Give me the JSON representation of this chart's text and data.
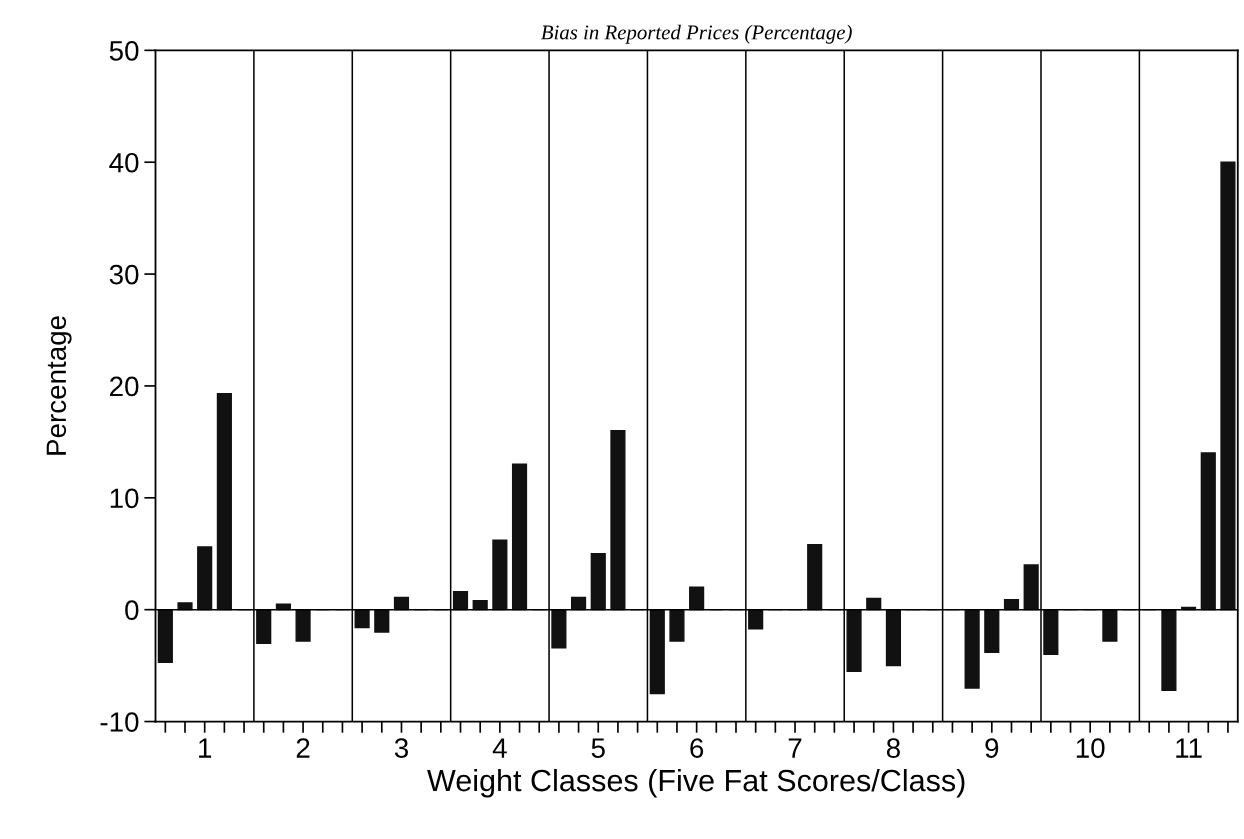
{
  "chart_data": {
    "type": "bar",
    "title": "Bias in Reported Prices (Percentage)",
    "xlabel": "Weight Classes (Five Fat Scores/Class)",
    "ylabel": "Percentage",
    "x": [
      0.6,
      0.8,
      1.0,
      1.2,
      1.4,
      1.6,
      1.8,
      2.0,
      2.2,
      2.4,
      2.6,
      2.8,
      3.0,
      3.2,
      3.4,
      3.6,
      3.8,
      4.0,
      4.2,
      4.4,
      4.6,
      4.8,
      5.0,
      5.2,
      5.4,
      5.6,
      5.8,
      6.0,
      6.2,
      6.4,
      6.6,
      6.8,
      7.0,
      7.2,
      7.4,
      7.6,
      7.8,
      8.0,
      8.2,
      8.4,
      8.6,
      8.8,
      9.0,
      9.2,
      9.4,
      9.6,
      9.8,
      10.0,
      10.2,
      10.4,
      10.6,
      10.8,
      11.0,
      11.2,
      11.4
    ],
    "values": [
      -4.7,
      0.6,
      5.6,
      19.3,
      0,
      -3.0,
      0.5,
      -2.8,
      0,
      0,
      -1.6,
      -2.0,
      1.1,
      0,
      0,
      1.6,
      0.8,
      6.2,
      13.0,
      0,
      -3.4,
      1.1,
      5.0,
      16.0,
      0,
      -7.5,
      -2.8,
      2.0,
      0,
      0,
      -1.7,
      0,
      0,
      5.8,
      0,
      -5.5,
      1.0,
      -5.0,
      0,
      0,
      0,
      -7.0,
      -3.8,
      0.9,
      4.0,
      -4.0,
      0,
      0,
      -2.8,
      0,
      0,
      -7.2,
      0.2,
      14.0,
      40.0
    ],
    "color": "#111111",
    "xlim": [
      0.5,
      11.5
    ],
    "xticks": [
      {
        "value": 0.6,
        "label": null
      },
      {
        "value": 0.8,
        "label": null
      },
      1,
      {
        "value": 1.2,
        "label": null
      },
      {
        "value": 1.4,
        "label": null
      },
      {
        "value": 1.6,
        "label": null
      },
      {
        "value": 1.8,
        "label": null
      },
      2,
      {
        "value": 2.2,
        "label": null
      },
      {
        "value": 2.4,
        "label": null
      },
      {
        "value": 2.6,
        "label": null
      },
      {
        "value": 2.8,
        "label": null
      },
      3,
      {
        "value": 3.2,
        "label": null
      },
      {
        "value": 3.4,
        "label": null
      },
      {
        "value": 3.6,
        "label": null
      },
      {
        "value": 3.8,
        "label": null
      },
      4,
      {
        "value": 4.2,
        "label": null
      },
      {
        "value": 4.4,
        "label": null
      },
      {
        "value": 4.6,
        "label": null
      },
      {
        "value": 4.8,
        "label": null
      },
      5,
      {
        "value": 5.2,
        "label": null
      },
      {
        "value": 5.4,
        "label": null
      },
      {
        "value": 5.6,
        "label": null
      },
      {
        "value": 5.8,
        "label": null
      },
      6,
      {
        "value": 6.2,
        "label": null
      },
      {
        "value": 6.4,
        "label": null
      },
      {
        "value": 6.6,
        "label": null
      },
      {
        "value": 6.8,
        "label": null
      },
      7,
      {
        "value": 7.2,
        "label": null
      },
      {
        "value": 7.4,
        "label": null
      },
      {
        "value": 7.6,
        "label": null
      },
      {
        "value": 7.8,
        "label": null
      },
      8,
      {
        "value": 8.2,
        "label": null
      },
      {
        "value": 8.4,
        "label": null
      },
      {
        "value": 8.6,
        "label": null
      },
      {
        "value": 8.8,
        "label": null
      },
      9,
      {
        "value": 9.2,
        "label": null
      },
      {
        "value": 9.4,
        "label": null
      },
      {
        "value": 9.6,
        "label": null
      },
      {
        "value": 9.8,
        "label": null
      },
      10,
      {
        "value": 10.2,
        "label": null
      },
      {
        "value": 10.4,
        "label": null
      },
      {
        "value": 10.6,
        "label": null
      },
      {
        "value": 10.8,
        "label": null
      },
      11,
      {
        "value": 11.2,
        "label": null
      },
      {
        "value": 11.4,
        "label": null
      }
    ],
    "ylim": [
      -10,
      50
    ],
    "yticks": [
      -10,
      0,
      10,
      20,
      30,
      40,
      50
    ],
    "ref_lines": [
      {
        "axis": "y",
        "value": 0,
        "color": "#000000"
      },
      {
        "axis": "x",
        "value": 1.5,
        "color": "#000000"
      },
      {
        "axis": "x",
        "value": 2.5,
        "color": "#000000"
      },
      {
        "axis": "x",
        "value": 3.5,
        "color": "#000000"
      },
      {
        "axis": "x",
        "value": 4.5,
        "color": "#000000"
      },
      {
        "axis": "x",
        "value": 5.5,
        "color": "#000000"
      },
      {
        "axis": "x",
        "value": 6.5,
        "color": "#000000"
      },
      {
        "axis": "x",
        "value": 7.5,
        "color": "#000000"
      },
      {
        "axis": "x",
        "value": 8.5,
        "color": "#000000"
      },
      {
        "axis": "x",
        "value": 9.5,
        "color": "#000000"
      },
      {
        "axis": "x",
        "value": 10.5,
        "color": "#000000"
      }
    ]
  }
}
